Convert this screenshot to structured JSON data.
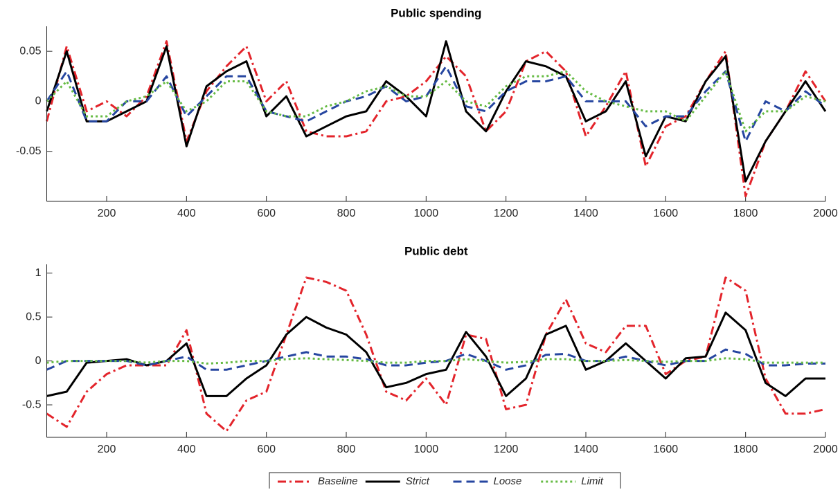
{
  "chart_data": [
    {
      "type": "line",
      "title": "Public spending",
      "x": [
        50,
        100,
        150,
        200,
        250,
        300,
        350,
        400,
        450,
        500,
        550,
        600,
        650,
        700,
        750,
        800,
        850,
        900,
        950,
        1000,
        1050,
        1100,
        1150,
        1200,
        1250,
        1300,
        1350,
        1400,
        1450,
        1500,
        1550,
        1600,
        1650,
        1700,
        1750,
        1800,
        1850,
        1900,
        1950,
        2000
      ],
      "xlim": [
        50,
        2000
      ],
      "xticks": [
        200,
        400,
        600,
        800,
        1000,
        1200,
        1400,
        1600,
        1800,
        2000
      ],
      "ylim": [
        -0.1,
        0.075
      ],
      "yticks": [
        -0.05,
        0,
        0.05
      ],
      "series": [
        {
          "name": "Baseline",
          "color": "#e3242b",
          "style": "dashdot",
          "values": [
            -0.02,
            0.055,
            -0.01,
            0.0,
            -0.015,
            0.005,
            0.06,
            -0.04,
            0.01,
            0.035,
            0.055,
            0.0,
            0.02,
            -0.03,
            -0.035,
            -0.035,
            -0.03,
            0.0,
            0.005,
            0.02,
            0.045,
            0.025,
            -0.03,
            -0.01,
            0.04,
            0.05,
            0.03,
            -0.035,
            -0.005,
            0.03,
            -0.065,
            -0.025,
            -0.015,
            0.02,
            0.05,
            -0.095,
            -0.04,
            -0.01,
            0.03,
            0.0
          ]
        },
        {
          "name": "Strict",
          "color": "#000000",
          "style": "solid",
          "values": [
            -0.01,
            0.05,
            -0.02,
            -0.02,
            -0.01,
            0.0,
            0.055,
            -0.045,
            0.015,
            0.03,
            0.04,
            -0.015,
            0.005,
            -0.035,
            -0.025,
            -0.015,
            -0.01,
            0.02,
            0.005,
            -0.015,
            0.06,
            -0.01,
            -0.03,
            0.01,
            0.04,
            0.035,
            0.025,
            -0.02,
            -0.01,
            0.02,
            -0.055,
            -0.015,
            -0.02,
            0.02,
            0.045,
            -0.08,
            -0.04,
            -0.01,
            0.02,
            -0.01
          ]
        },
        {
          "name": "Loose",
          "color": "#2646a0",
          "style": "dashed",
          "values": [
            0.0,
            0.03,
            -0.02,
            -0.02,
            0.0,
            0.0,
            0.025,
            -0.015,
            0.005,
            0.025,
            0.025,
            -0.01,
            -0.015,
            -0.02,
            -0.01,
            0.0,
            0.005,
            0.015,
            0.0,
            0.005,
            0.035,
            -0.005,
            -0.01,
            0.01,
            0.02,
            0.02,
            0.025,
            0.0,
            0.0,
            0.0,
            -0.025,
            -0.015,
            -0.015,
            0.01,
            0.03,
            -0.04,
            0.0,
            -0.01,
            0.01,
            -0.005
          ]
        },
        {
          "name": "Limit",
          "color": "#66bb44",
          "style": "dotted",
          "values": [
            0.0,
            0.02,
            -0.015,
            -0.015,
            0.0,
            0.005,
            0.02,
            -0.01,
            0.0,
            0.02,
            0.02,
            -0.01,
            -0.015,
            -0.015,
            -0.005,
            0.0,
            0.01,
            0.015,
            0.005,
            0.005,
            0.02,
            0.0,
            -0.005,
            0.015,
            0.025,
            0.025,
            0.03,
            0.01,
            0.0,
            -0.005,
            -0.01,
            -0.01,
            -0.02,
            0.005,
            0.03,
            -0.03,
            -0.01,
            -0.01,
            0.005,
            0.0
          ]
        }
      ]
    },
    {
      "type": "line",
      "title": "Public debt",
      "x": [
        50,
        100,
        150,
        200,
        250,
        300,
        350,
        400,
        450,
        500,
        550,
        600,
        650,
        700,
        750,
        800,
        850,
        900,
        950,
        1000,
        1050,
        1100,
        1150,
        1200,
        1250,
        1300,
        1350,
        1400,
        1450,
        1500,
        1550,
        1600,
        1650,
        1700,
        1750,
        1800,
        1850,
        1900,
        1950,
        2000
      ],
      "xlim": [
        50,
        2000
      ],
      "xticks": [
        200,
        400,
        600,
        800,
        1000,
        1200,
        1400,
        1600,
        1800,
        2000
      ],
      "ylim": [
        -0.87,
        1.1
      ],
      "yticks": [
        -0.5,
        0,
        0.5,
        1
      ],
      "series": [
        {
          "color": "#e3242b",
          "style": "dashdot",
          "values": [
            -0.6,
            -0.75,
            -0.35,
            -0.15,
            -0.05,
            -0.05,
            -0.05,
            0.35,
            -0.6,
            -0.8,
            -0.45,
            -0.35,
            0.3,
            0.95,
            0.9,
            0.8,
            0.3,
            -0.35,
            -0.45,
            -0.2,
            -0.5,
            0.3,
            0.25,
            -0.55,
            -0.5,
            0.3,
            0.7,
            0.2,
            0.1,
            0.4,
            0.4,
            -0.15,
            0.0,
            0.05,
            0.95,
            0.8,
            -0.2,
            -0.6,
            -0.6,
            -0.55
          ]
        },
        {
          "color": "#000000",
          "style": "solid",
          "values": [
            -0.4,
            -0.35,
            -0.02,
            0.0,
            0.02,
            -0.05,
            0.0,
            0.2,
            -0.4,
            -0.4,
            -0.2,
            -0.05,
            0.3,
            0.5,
            0.38,
            0.3,
            0.1,
            -0.3,
            -0.25,
            -0.15,
            -0.1,
            0.33,
            0.05,
            -0.4,
            -0.2,
            0.3,
            0.4,
            -0.1,
            0.0,
            0.2,
            0.0,
            -0.2,
            0.03,
            0.05,
            0.55,
            0.35,
            -0.25,
            -0.4,
            -0.2,
            -0.2
          ]
        },
        {
          "color": "#2646a0",
          "style": "dashed",
          "values": [
            -0.1,
            0.0,
            0.0,
            0.0,
            0.0,
            -0.05,
            0.0,
            0.05,
            -0.1,
            -0.1,
            -0.05,
            0.0,
            0.05,
            0.1,
            0.05,
            0.05,
            0.02,
            -0.05,
            -0.05,
            -0.02,
            0.0,
            0.08,
            0.0,
            -0.1,
            -0.05,
            0.07,
            0.08,
            0.0,
            0.0,
            0.05,
            0.0,
            -0.05,
            0.0,
            0.0,
            0.13,
            0.08,
            -0.05,
            -0.05,
            -0.03,
            -0.03
          ]
        },
        {
          "color": "#66bb44",
          "style": "dotted",
          "values": [
            -0.02,
            0.0,
            0.0,
            0.0,
            0.0,
            -0.02,
            0.0,
            0.0,
            -0.03,
            -0.02,
            0.0,
            0.0,
            0.02,
            0.03,
            0.02,
            0.01,
            0.0,
            -0.02,
            -0.02,
            0.0,
            0.0,
            0.02,
            0.0,
            -0.02,
            -0.01,
            0.02,
            0.02,
            0.0,
            0.0,
            0.01,
            0.0,
            -0.01,
            0.0,
            0.0,
            0.03,
            0.02,
            -0.02,
            -0.02,
            -0.02,
            -0.02
          ]
        }
      ]
    }
  ]
}
